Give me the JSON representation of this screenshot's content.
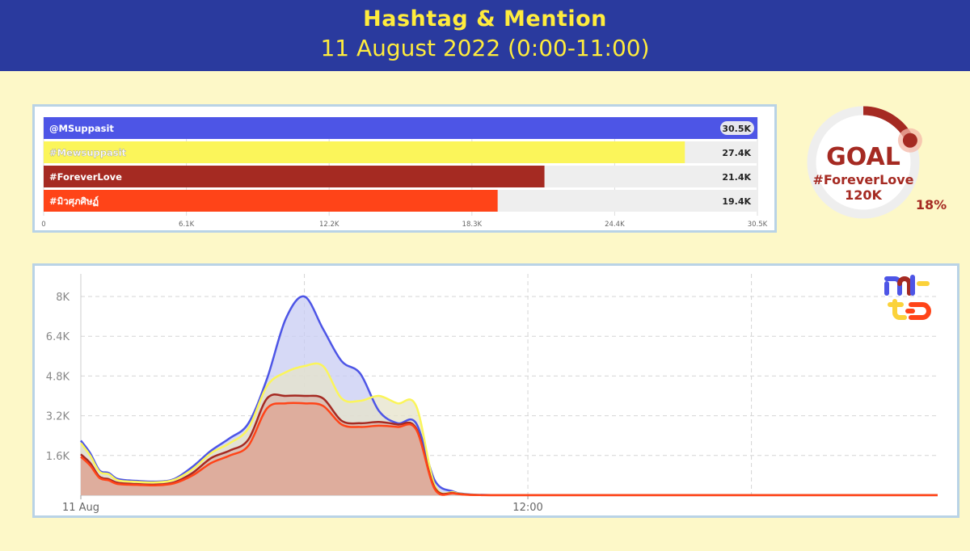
{
  "header": {
    "title": "Hashtag & Mention",
    "subtitle": "11 August 2022 (0:00-11:00)"
  },
  "goal": {
    "label": "GOAL",
    "hashtag": "#ForeverLove",
    "target": "120K",
    "percent_label": "18%",
    "progress": 0.18,
    "ring_color": "#a52a22",
    "track_color": "#eeeeee"
  },
  "chart_data": [
    {
      "type": "bar",
      "orientation": "horizontal",
      "categories": [
        "@MSuppasit",
        "#Mewsuppasit",
        "#ForeverLove",
        "#มิวศุภศิษฏ์"
      ],
      "values": [
        30500,
        27400,
        21400,
        19400
      ],
      "value_labels": [
        "30.5K",
        "27.4K",
        "21.4K",
        "19.4K"
      ],
      "colors": [
        "#4d55e6",
        "#fbf55a",
        "#a52a22",
        "#ff4418"
      ],
      "xlim": [
        0,
        30500
      ],
      "xticks": [
        "0",
        "6.1K",
        "12.2K",
        "18.3K",
        "24.4K",
        "30.5K"
      ],
      "grid": true
    },
    {
      "type": "area",
      "x_range": [
        "11 Aug 00:00",
        "11 Aug 23:00"
      ],
      "xticks": [
        "11 Aug",
        "12:00"
      ],
      "ylim": [
        0,
        8000
      ],
      "yticks": [
        "1.6K",
        "3.2K",
        "4.8K",
        "6.4K",
        "8K"
      ],
      "grid": true,
      "series": [
        {
          "name": "@MSuppasit",
          "color": "#4d55e6",
          "x": [
            0,
            0.25,
            0.5,
            0.75,
            1,
            1.5,
            2,
            2.5,
            3,
            3.5,
            4,
            4.5,
            5,
            5.5,
            6,
            6.5,
            7,
            7.5,
            8,
            8.5,
            9,
            9.5,
            10,
            10.25,
            10.5,
            10.75,
            11,
            11.5,
            12,
            13,
            14,
            15,
            16,
            17,
            18,
            19,
            20,
            21,
            22,
            23
          ],
          "values": [
            2200,
            1700,
            1000,
            900,
            650,
            580,
            550,
            650,
            1150,
            1800,
            2300,
            2900,
            4700,
            7100,
            8000,
            6700,
            5400,
            4900,
            3400,
            2900,
            2900,
            600,
            150,
            60,
            30,
            15,
            10,
            10,
            10,
            10,
            10,
            10,
            10,
            10,
            10,
            10,
            10,
            10,
            10,
            10
          ]
        },
        {
          "name": "#Mewsuppasit",
          "color": "#fbf55a",
          "x": [
            0,
            0.25,
            0.5,
            0.75,
            1,
            1.5,
            2,
            2.5,
            3,
            3.5,
            4,
            4.5,
            5,
            5.5,
            6,
            6.5,
            7,
            7.5,
            8,
            8.5,
            9,
            9.5,
            10,
            10.25,
            10.5,
            10.75,
            11,
            11.5,
            12,
            13,
            14,
            15,
            16,
            17,
            18,
            19,
            20,
            21,
            22,
            23
          ],
          "values": [
            2100,
            1600,
            950,
            850,
            600,
            540,
            520,
            620,
            1050,
            1700,
            2100,
            2700,
            4400,
            4950,
            5200,
            5200,
            3900,
            3800,
            4000,
            3700,
            3600,
            400,
            120,
            50,
            20,
            10,
            8,
            8,
            8,
            8,
            8,
            8,
            8,
            8,
            8,
            8,
            8,
            8,
            8,
            8
          ]
        },
        {
          "name": "#ForeverLove",
          "color": "#a52a22",
          "x": [
            0,
            0.25,
            0.5,
            0.75,
            1,
            1.5,
            2,
            2.5,
            3,
            3.5,
            4,
            4.5,
            5,
            5.5,
            6,
            6.5,
            7,
            7.5,
            8,
            8.5,
            9,
            9.5,
            10,
            10.25,
            10.5,
            10.75,
            11,
            11.5,
            12,
            13,
            14,
            15,
            16,
            17,
            18,
            19,
            20,
            21,
            22,
            23
          ],
          "values": [
            1650,
            1300,
            750,
            650,
            500,
            450,
            430,
            520,
            900,
            1500,
            1800,
            2250,
            3900,
            4000,
            4000,
            3900,
            3000,
            2900,
            2950,
            2850,
            2700,
            300,
            90,
            40,
            15,
            8,
            6,
            6,
            6,
            6,
            6,
            6,
            6,
            6,
            6,
            6,
            6,
            6,
            6,
            6
          ]
        },
        {
          "name": "#มิวศุภศิษฏ์",
          "color": "#ff4418",
          "x": [
            0,
            0.25,
            0.5,
            0.75,
            1,
            1.5,
            2,
            2.5,
            3,
            3.5,
            4,
            4.5,
            5,
            5.5,
            6,
            6.5,
            7,
            7.5,
            8,
            8.5,
            9,
            9.5,
            10,
            10.25,
            10.5,
            10.75,
            11,
            11.5,
            12,
            13,
            14,
            15,
            16,
            17,
            18,
            19,
            20,
            21,
            22,
            23
          ],
          "values": [
            1550,
            1200,
            700,
            600,
            450,
            420,
            400,
            480,
            800,
            1300,
            1600,
            2000,
            3500,
            3700,
            3700,
            3600,
            2850,
            2750,
            2800,
            2750,
            2650,
            250,
            80,
            30,
            12,
            6,
            5,
            5,
            5,
            5,
            5,
            5,
            5,
            5,
            5,
            5,
            5,
            5,
            5,
            5
          ]
        }
      ]
    }
  ]
}
